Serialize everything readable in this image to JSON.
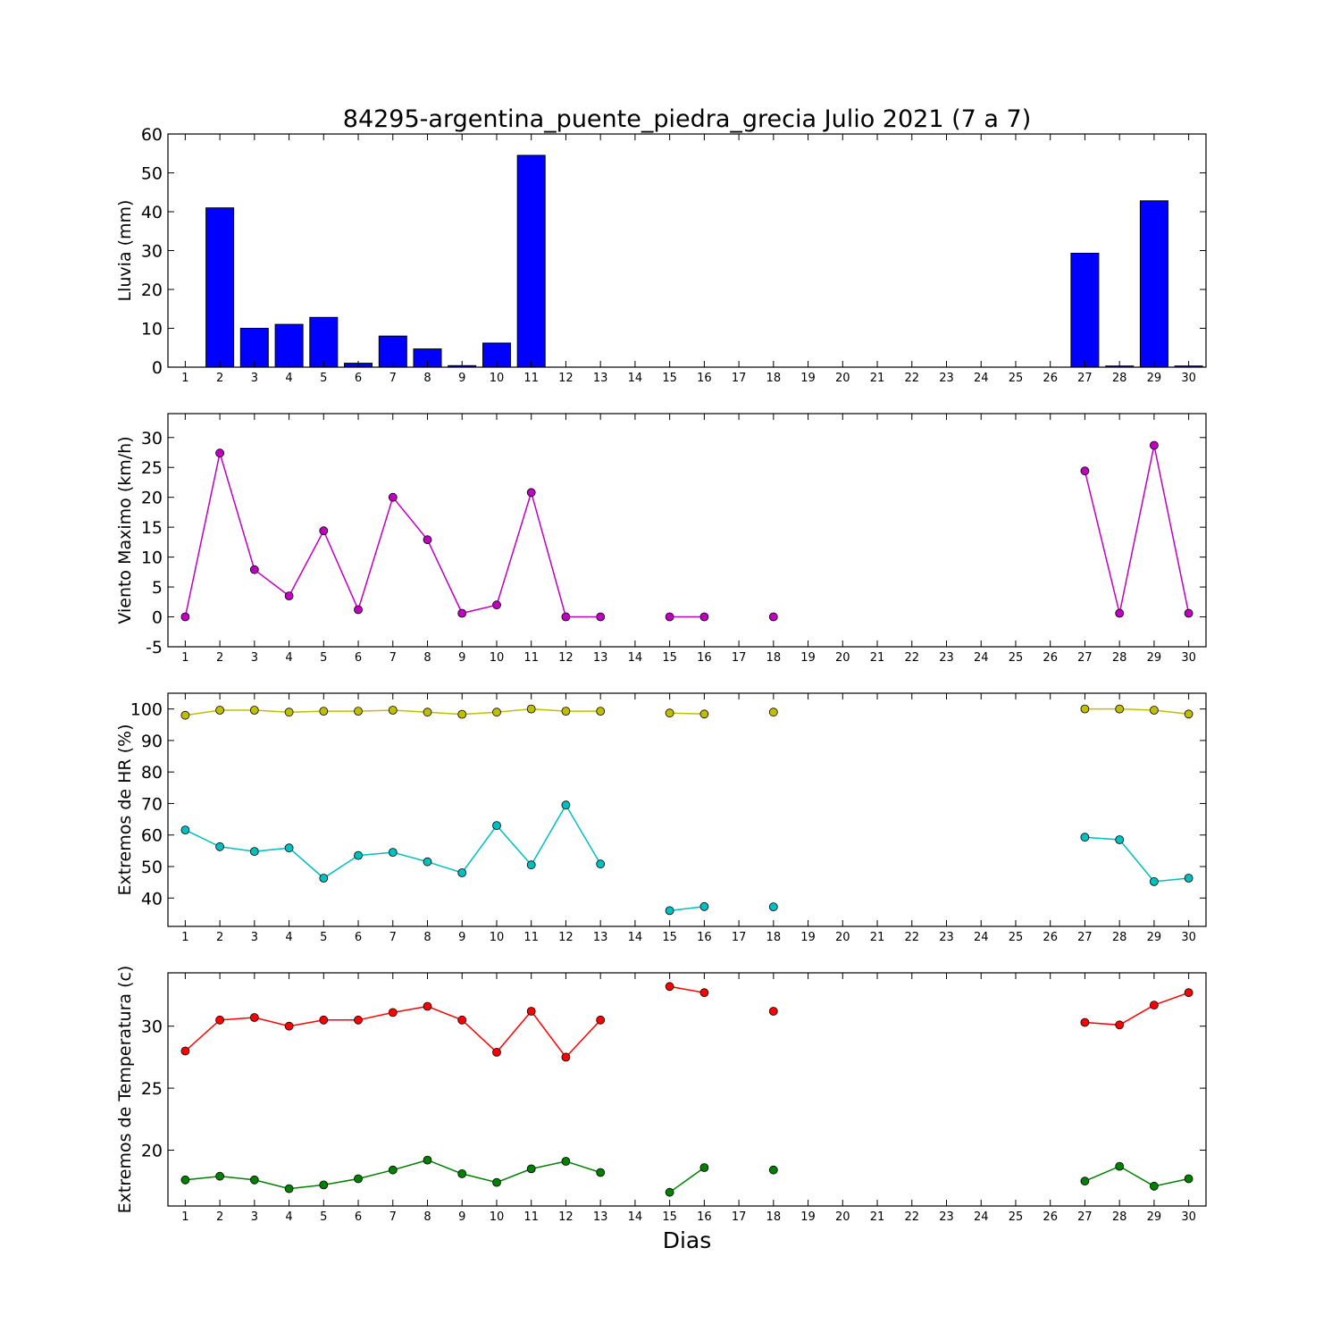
{
  "chart_data": {
    "type": "multi-panel",
    "title": "84295-argentina_puente_piedra_grecia Julio 2021  (7 a 7)",
    "xlabel": "Dias",
    "x": [
      1,
      2,
      3,
      4,
      5,
      6,
      7,
      8,
      9,
      10,
      11,
      12,
      13,
      14,
      15,
      16,
      17,
      18,
      19,
      20,
      21,
      22,
      23,
      24,
      25,
      26,
      27,
      28,
      29,
      30
    ],
    "panels": [
      {
        "type": "bar",
        "ylabel": "Lluvia (mm)",
        "ylim": [
          0,
          60
        ],
        "yticks": [
          0,
          10,
          20,
          30,
          40,
          50,
          60
        ],
        "series": [
          {
            "color": "#0000ff",
            "values": [
              0,
              41,
              10,
              11,
              12.8,
              1,
              8,
              4.7,
              0.4,
              6.2,
              54.5,
              0,
              0,
              0,
              0,
              0,
              0,
              0,
              0,
              0,
              0,
              0,
              0,
              0,
              0,
              0,
              29.3,
              0.3,
              42.8,
              0.3
            ]
          }
        ]
      },
      {
        "type": "line",
        "ylabel": "Viento Maximo (km/h)",
        "ylim": [
          -5,
          34
        ],
        "yticks": [
          -5,
          0,
          5,
          10,
          15,
          20,
          25,
          30
        ],
        "series": [
          {
            "color": "#bf00bf",
            "values": [
              0,
              27.4,
              7.9,
              3.5,
              14.4,
              1.2,
              20,
              12.9,
              0.6,
              2,
              20.8,
              0,
              0,
              null,
              0,
              0,
              null,
              0,
              null,
              null,
              null,
              null,
              null,
              null,
              null,
              null,
              24.4,
              0.6,
              28.7,
              0.6
            ]
          }
        ]
      },
      {
        "type": "line",
        "ylabel": "Extremos de HR (%)",
        "ylim": [
          31,
          105
        ],
        "yticks": [
          40,
          50,
          60,
          70,
          80,
          90,
          100
        ],
        "series": [
          {
            "color": "#bfbf00",
            "values": [
              98,
              99.6,
              99.6,
              99,
              99.3,
              99.3,
              99.6,
              99,
              98.3,
              99,
              100,
              99.3,
              99.3,
              null,
              98.7,
              98.4,
              null,
              99,
              null,
              null,
              null,
              null,
              null,
              null,
              null,
              null,
              100,
              100,
              99.6,
              98.4
            ]
          },
          {
            "color": "#00bfbf",
            "values": [
              61.6,
              56.3,
              54.8,
              55.9,
              46.3,
              53.5,
              54.5,
              51.5,
              48,
              63,
              50.5,
              69.5,
              50.8,
              null,
              36,
              37.3,
              null,
              37.2,
              null,
              null,
              null,
              null,
              null,
              null,
              null,
              null,
              59.3,
              58.5,
              45.2,
              46.3
            ]
          }
        ]
      },
      {
        "type": "line",
        "ylabel": "Extremos de Temperatura (c)",
        "ylim": [
          15.5,
          34.3
        ],
        "yticks": [
          20,
          25,
          30
        ],
        "series": [
          {
            "color": "#ff0000",
            "values": [
              28,
              30.5,
              30.7,
              30,
              30.5,
              30.5,
              31.1,
              31.6,
              30.5,
              27.9,
              31.2,
              27.5,
              30.5,
              null,
              33.2,
              32.7,
              null,
              31.2,
              null,
              null,
              null,
              null,
              null,
              null,
              null,
              null,
              30.3,
              30.1,
              31.7,
              32.7
            ]
          },
          {
            "color": "#008000",
            "values": [
              17.6,
              17.9,
              17.6,
              16.9,
              17.2,
              17.7,
              18.4,
              19.2,
              18.1,
              17.4,
              18.5,
              19.1,
              18.2,
              null,
              16.6,
              18.6,
              null,
              18.4,
              null,
              null,
              null,
              null,
              null,
              null,
              null,
              null,
              17.5,
              18.7,
              17.1,
              17.7
            ]
          }
        ]
      }
    ]
  }
}
